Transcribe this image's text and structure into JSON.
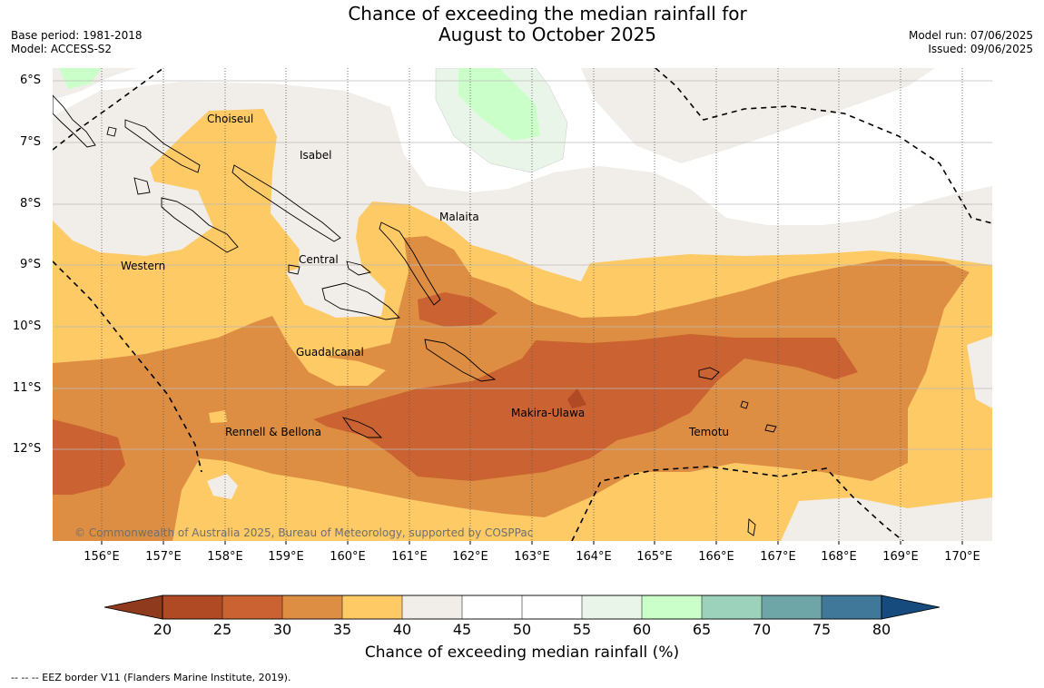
{
  "title": {
    "line1": "Chance of exceeding the median rainfall for",
    "line2": "August to October 2025"
  },
  "meta_left": {
    "base_period": "Base period: 1981-2018",
    "model": "Model: ACCESS-S2"
  },
  "meta_right": {
    "model_run": "Model run: 07/06/2025",
    "issued": "Issued: 09/06/2025"
  },
  "map": {
    "lon_labels": [
      "156°E",
      "157°E",
      "158°E",
      "159°E",
      "160°E",
      "161°E",
      "162°E",
      "163°E",
      "164°E",
      "165°E",
      "166°E",
      "167°E",
      "168°E",
      "169°E",
      "170°E"
    ],
    "lat_labels": [
      "6°S",
      "7°S",
      "8°S",
      "9°S",
      "10°S",
      "11°S",
      "12°S"
    ],
    "regions": [
      "Choiseul",
      "Isabel",
      "Malaita",
      "Western",
      "Central",
      "Guadalcanal",
      "Makira-Ulawa",
      "Rennell & Bellona",
      "Temotu"
    ],
    "copyright": "© Commonwealth of Australia 2025, Bureau of Meteorology, supported by COSPPac"
  },
  "colorbar": {
    "ticks": [
      "20",
      "25",
      "30",
      "35",
      "40",
      "45",
      "50",
      "55",
      "60",
      "65",
      "70",
      "75",
      "80"
    ],
    "colors": [
      "#b04a25",
      "#ca6231",
      "#de8e42",
      "#fdca65",
      "#f1ede8",
      "#ffffff",
      "#ffffff",
      "#eaf5ea",
      "#caffca",
      "#9cd2bb",
      "#6ea5a7",
      "#3f7898"
    ],
    "under_color": "#8f3a1d",
    "over_color": "#164b7e",
    "label": "Chance of exceeding median rainfall (%)"
  },
  "eez_note": "--  --  -- EEZ border V11 (Flanders Marine Institute, 2019)."
}
